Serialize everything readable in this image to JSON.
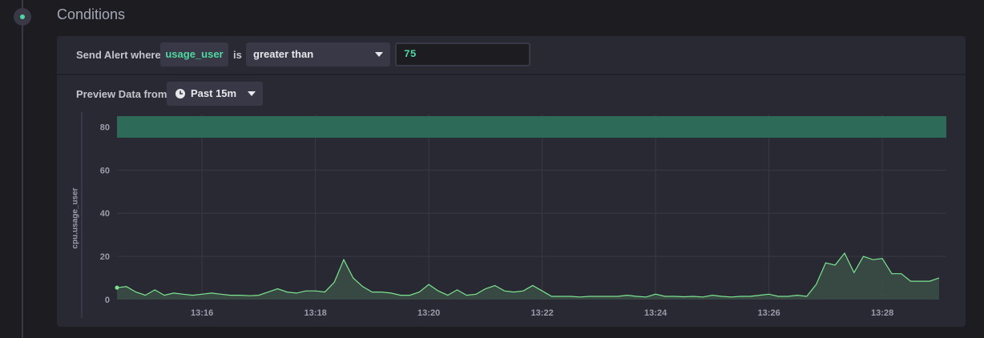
{
  "section": {
    "title": "Conditions"
  },
  "condition": {
    "prefix": "Send Alert where",
    "field": "usage_user",
    "is_label": "is",
    "operator": "greater than",
    "value": "75"
  },
  "preview": {
    "label": "Preview Data from",
    "timeframe": "Past 15m"
  },
  "chart_data": {
    "type": "area",
    "ylabel": "cpu.usage_user",
    "ylim": [
      0,
      85
    ],
    "yticks": [
      0,
      20,
      40,
      60,
      80
    ],
    "xticks": [
      "13:16",
      "13:18",
      "13:20",
      "13:22",
      "13:24",
      "13:26",
      "13:28"
    ],
    "threshold": {
      "value": 75,
      "operator": "greater than",
      "color": "#2d6a58"
    },
    "series": [
      {
        "color": "#7ce490",
        "points": [
          [
            "13:14:30",
            5.5
          ],
          [
            "13:14:40",
            6
          ],
          [
            "13:14:50",
            3.5
          ],
          [
            "13:15:00",
            2
          ],
          [
            "13:15:10",
            4.5
          ],
          [
            "13:15:20",
            2
          ],
          [
            "13:15:30",
            3
          ],
          [
            "13:15:40",
            2.5
          ],
          [
            "13:15:50",
            2
          ],
          [
            "13:16:00",
            2.5
          ],
          [
            "13:16:10",
            3
          ],
          [
            "13:16:20",
            2.5
          ],
          [
            "13:16:30",
            2
          ],
          [
            "13:16:40",
            2
          ],
          [
            "13:16:50",
            1.8
          ],
          [
            "13:17:00",
            2
          ],
          [
            "13:17:10",
            3.5
          ],
          [
            "13:17:20",
            5
          ],
          [
            "13:17:30",
            3.5
          ],
          [
            "13:17:40",
            3
          ],
          [
            "13:17:50",
            4
          ],
          [
            "13:18:00",
            4
          ],
          [
            "13:18:10",
            3.5
          ],
          [
            "13:18:20",
            8
          ],
          [
            "13:18:30",
            18.5
          ],
          [
            "13:18:40",
            10
          ],
          [
            "13:18:50",
            6
          ],
          [
            "13:19:00",
            3.5
          ],
          [
            "13:19:10",
            3.5
          ],
          [
            "13:19:20",
            3
          ],
          [
            "13:19:30",
            2
          ],
          [
            "13:19:40",
            2
          ],
          [
            "13:19:50",
            3.5
          ],
          [
            "13:20:00",
            7
          ],
          [
            "13:20:10",
            4
          ],
          [
            "13:20:20",
            2
          ],
          [
            "13:20:30",
            4.5
          ],
          [
            "13:20:40",
            2
          ],
          [
            "13:20:50",
            2.5
          ],
          [
            "13:21:00",
            5
          ],
          [
            "13:21:10",
            6.5
          ],
          [
            "13:21:20",
            4
          ],
          [
            "13:21:30",
            3.5
          ],
          [
            "13:21:40",
            4
          ],
          [
            "13:21:50",
            6.5
          ],
          [
            "13:22:00",
            4
          ],
          [
            "13:22:10",
            1.5
          ],
          [
            "13:22:20",
            1.5
          ],
          [
            "13:22:30",
            1.5
          ],
          [
            "13:22:40",
            1.2
          ],
          [
            "13:22:50",
            1.5
          ],
          [
            "13:23:00",
            1.5
          ],
          [
            "13:23:10",
            1.5
          ],
          [
            "13:23:20",
            1.5
          ],
          [
            "13:23:30",
            2
          ],
          [
            "13:23:40",
            1.5
          ],
          [
            "13:23:50",
            1.2
          ],
          [
            "13:24:00",
            2.5
          ],
          [
            "13:24:10",
            1.5
          ],
          [
            "13:24:20",
            1.5
          ],
          [
            "13:24:30",
            1.3
          ],
          [
            "13:24:40",
            1.5
          ],
          [
            "13:24:50",
            1.2
          ],
          [
            "13:25:00",
            2
          ],
          [
            "13:25:10",
            1.5
          ],
          [
            "13:25:20",
            1.2
          ],
          [
            "13:25:30",
            1.5
          ],
          [
            "13:25:40",
            1.5
          ],
          [
            "13:25:50",
            2
          ],
          [
            "13:26:00",
            2.5
          ],
          [
            "13:26:10",
            1.5
          ],
          [
            "13:26:20",
            1.5
          ],
          [
            "13:26:30",
            2
          ],
          [
            "13:26:40",
            1.5
          ],
          [
            "13:26:50",
            7
          ],
          [
            "13:27:00",
            17
          ],
          [
            "13:27:10",
            16
          ],
          [
            "13:27:20",
            21.5
          ],
          [
            "13:27:30",
            12.5
          ],
          [
            "13:27:40",
            20
          ],
          [
            "13:27:50",
            18.5
          ],
          [
            "13:28:00",
            19
          ],
          [
            "13:28:10",
            12
          ],
          [
            "13:28:20",
            12
          ],
          [
            "13:28:30",
            8.5
          ],
          [
            "13:28:40",
            8.5
          ],
          [
            "13:28:50",
            8.5
          ],
          [
            "13:29:00",
            10
          ]
        ]
      }
    ]
  },
  "colors": {
    "accent": "#4ed8a0",
    "line": "#7ce490",
    "fill": "#3a4f45",
    "threshold_band": "#2d6a58"
  },
  "icons": {
    "timeline": "timeline-dot-icon",
    "dropdown": "caret-down-icon",
    "time": "clock-icon"
  }
}
